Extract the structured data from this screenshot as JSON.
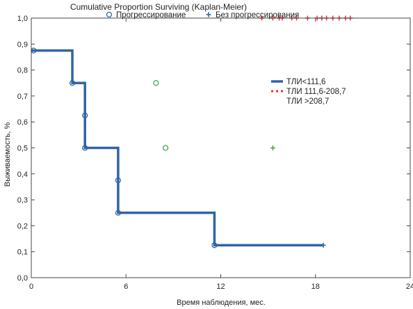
{
  "chart_data": {
    "type": "line",
    "title": "Cumulative Proportion Surviving (Kaplan-Meier)",
    "xlabel": "Время наблюдения, мес.",
    "ylabel": "Выживаемость, %",
    "xlim": [
      0,
      24
    ],
    "ylim": [
      0,
      1
    ],
    "x_ticks": [
      "0",
      "6",
      "12",
      "18",
      "24"
    ],
    "y_ticks": [
      "0,0",
      "0,1",
      "0,2",
      "0,3",
      "0,4",
      "0,5",
      "0,6",
      "0,7",
      "0,8",
      "0,9",
      "1,0"
    ],
    "grid": false,
    "legend_top": {
      "placement": "top",
      "entries": [
        {
          "label": "Прогрессирование",
          "marker": "open-circle"
        },
        {
          "label": "Без прогрессирования",
          "marker": "plus"
        }
      ]
    },
    "legend_right": {
      "placement": "top-right",
      "entries": [
        {
          "label": "ТЛИ<111,6",
          "style": "solid",
          "color": "#2f64a8"
        },
        {
          "label": "ТЛИ 111,6-208,7",
          "style": "dashed",
          "color": "#e2353a"
        },
        {
          "label": "ТЛИ >208,7",
          "style": "none",
          "color": "#3fa24a"
        }
      ]
    },
    "series": [
      {
        "color": "#2f64a8",
        "step": [
          [
            0,
            0.875
          ],
          [
            2.6,
            0.875
          ],
          [
            2.6,
            0.75
          ],
          [
            3.4,
            0.75
          ],
          [
            3.4,
            0.5
          ],
          [
            5.5,
            0.5
          ],
          [
            5.5,
            0.25
          ],
          [
            11.6,
            0.25
          ],
          [
            11.6,
            0.125
          ],
          [
            18.5,
            0.125
          ]
        ],
        "events": [
          {
            "x": 0.15,
            "y": 0.875
          },
          {
            "x": 2.6,
            "y": 0.75
          },
          {
            "x": 3.4,
            "y": 0.625
          },
          {
            "x": 3.4,
            "y": 0.5
          },
          {
            "x": 5.5,
            "y": 0.375
          },
          {
            "x": 5.5,
            "y": 0.25
          },
          {
            "x": 11.6,
            "y": 0.125
          }
        ],
        "censored": [
          {
            "x": 18.5,
            "y": 0.125
          }
        ]
      },
      {
        "color": "#e2353a",
        "events": [],
        "censored": [
          {
            "x": 14.6,
            "y": 1.0
          },
          {
            "x": 15.3,
            "y": 1.0
          },
          {
            "x": 15.7,
            "y": 1.0
          },
          {
            "x": 15.9,
            "y": 1.0
          },
          {
            "x": 16.5,
            "y": 1.0
          },
          {
            "x": 16.8,
            "y": 1.0
          },
          {
            "x": 17.5,
            "y": 1.0
          },
          {
            "x": 18.1,
            "y": 1.0
          },
          {
            "x": 18.4,
            "y": 1.0
          },
          {
            "x": 18.7,
            "y": 1.0
          },
          {
            "x": 19.1,
            "y": 1.0
          },
          {
            "x": 19.5,
            "y": 1.0
          },
          {
            "x": 19.9,
            "y": 1.0
          },
          {
            "x": 20.2,
            "y": 1.0
          }
        ]
      },
      {
        "color": "#3fa24a",
        "events": [
          {
            "x": 7.9,
            "y": 0.75
          },
          {
            "x": 8.5,
            "y": 0.5
          }
        ],
        "censored": [
          {
            "x": 15.3,
            "y": 0.5
          }
        ]
      }
    ]
  }
}
